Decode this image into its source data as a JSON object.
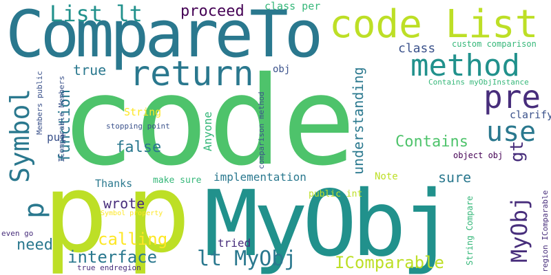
{
  "palette": {
    "bg": "#ffffff",
    "lime": "#bddf26",
    "green": "#4ec36b",
    "teal": "#2a788e",
    "teal2": "#21918c",
    "blue": "#3b528b",
    "purple": "#472d7b",
    "dark": "#440154",
    "yellow": "#fde725",
    "mint": "#35b779"
  },
  "words": {
    "code": "code",
    "compareto": "CompareTo",
    "code_list": "code List",
    "myobj_big": "MyObj",
    "p1": "p",
    "p2": "p",
    "p_small": "p",
    "return": "return",
    "method": "method",
    "pre": "pre",
    "use": "use",
    "symbol": "Symbol",
    "list_lt": "List lt",
    "proceed": "proceed",
    "class_per": "class per",
    "class": "class",
    "custom_comparison": "custom comparison",
    "contains_myobjinstance": "Contains myObjInstance",
    "obj": "obj",
    "true_word": "true",
    "function": "function",
    "string": "String",
    "stopping_point": "stopping point",
    "anyone": "Anyone",
    "false_word": "false",
    "contains": "Contains",
    "understanding": "understanding",
    "clarify": "clarify",
    "gt": "gt",
    "object_obj": "object obj",
    "myobj_vert": "MyObj",
    "sure": "sure",
    "implementation": "implementation",
    "note": "Note",
    "public_int": "public int",
    "thanks": "Thanks",
    "make_sure": "make sure",
    "members_public": "Members public",
    "icomparable_members": "IComparable Members",
    "comparison_method": "comparison method",
    "put": "put",
    "wrote": "wrote",
    "calling": "calling",
    "need": "need",
    "interface": "interface",
    "symbol_property": "Symbol property",
    "tried": "tried",
    "lt_myobj": "lt MyObj",
    "icomparable": "IComparable",
    "string_compare": "String Compare",
    "region_icomparable": "region IComparable",
    "even_go": "even go",
    "true_endregion": "true endregion"
  }
}
